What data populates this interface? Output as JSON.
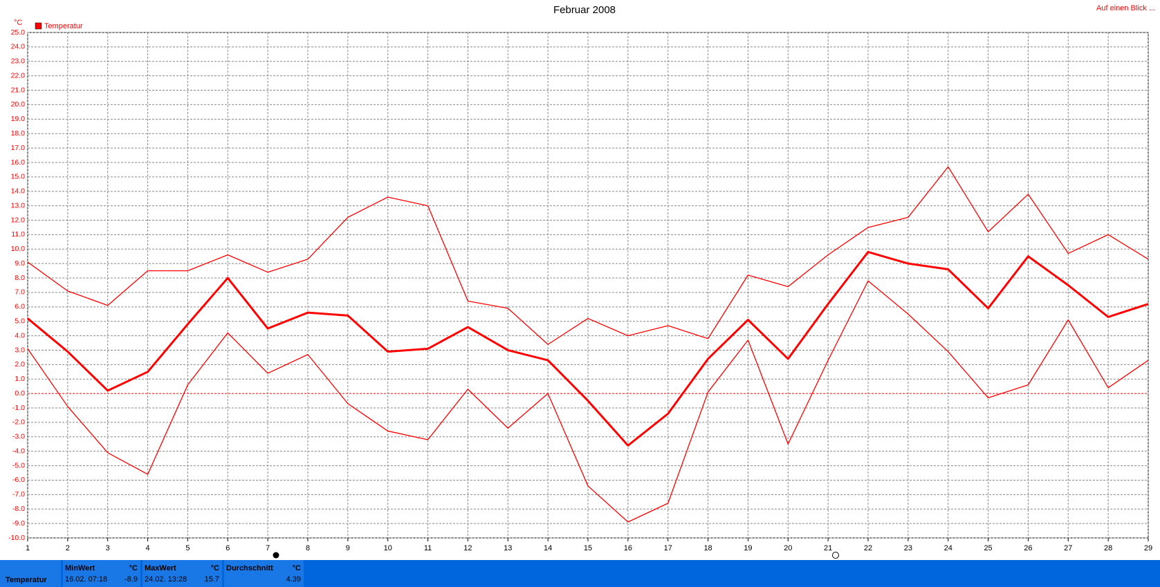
{
  "chart_data": {
    "type": "line",
    "title": "Februar 2008",
    "link": "Auf einen Blick ...",
    "y_unit": "°C",
    "legend": "Temperatur",
    "color": "#ff0000",
    "grid": true,
    "zero_line_color": "#ff0000",
    "x": [
      1,
      2,
      3,
      4,
      5,
      6,
      7,
      8,
      9,
      10,
      11,
      12,
      13,
      14,
      15,
      16,
      17,
      18,
      19,
      20,
      21,
      22,
      23,
      24,
      25,
      26,
      27,
      28,
      29
    ],
    "xlim": [
      1,
      29
    ],
    "xticks": [
      1,
      2,
      3,
      4,
      5,
      6,
      7,
      8,
      9,
      10,
      11,
      12,
      13,
      14,
      15,
      16,
      17,
      18,
      19,
      20,
      21,
      22,
      23,
      24,
      25,
      26,
      27,
      28,
      29
    ],
    "ylim": [
      -10,
      25
    ],
    "yticks": [
      {
        "value": -10,
        "label": "-10.0"
      },
      {
        "value": -9,
        "label": "-9.0"
      },
      {
        "value": -8,
        "label": "-8.0"
      },
      {
        "value": -7,
        "label": "-7.0"
      },
      {
        "value": -6,
        "label": "-6.0"
      },
      {
        "value": -5,
        "label": "-5.0"
      },
      {
        "value": -4,
        "label": "-4.0"
      },
      {
        "value": -3,
        "label": "-3.0"
      },
      {
        "value": -2,
        "label": "-2.0"
      },
      {
        "value": -1,
        "label": "-1.0"
      },
      {
        "value": 0,
        "label": "0.0"
      },
      {
        "value": 1,
        "label": "1.0"
      },
      {
        "value": 2,
        "label": "2.0"
      },
      {
        "value": 3,
        "label": "3.0"
      },
      {
        "value": 4,
        "label": "4.0"
      },
      {
        "value": 5,
        "label": "5.0"
      },
      {
        "value": 6,
        "label": "6.0"
      },
      {
        "value": 7,
        "label": "7.0"
      },
      {
        "value": 8,
        "label": "8.0"
      },
      {
        "value": 9,
        "label": "9.0"
      },
      {
        "value": 10,
        "label": "10.0"
      },
      {
        "value": 11,
        "label": "11.0"
      },
      {
        "value": 12,
        "label": "12.0"
      },
      {
        "value": 13,
        "label": "13.0"
      },
      {
        "value": 14,
        "label": "14.0"
      },
      {
        "value": 15,
        "label": "15.0"
      },
      {
        "value": 16,
        "label": "16.0"
      },
      {
        "value": 17,
        "label": "17.0"
      },
      {
        "value": 18,
        "label": "18.0"
      },
      {
        "value": 19,
        "label": "19.0"
      },
      {
        "value": 20,
        "label": "20.0"
      },
      {
        "value": 21,
        "label": "21.0"
      },
      {
        "value": 22,
        "label": "22.0"
      },
      {
        "value": 23,
        "label": "23.0"
      },
      {
        "value": 24,
        "label": "24.0"
      },
      {
        "value": 25,
        "label": "25.0"
      }
    ],
    "series": [
      {
        "line_width": 1.3,
        "values": [
          9.1,
          7.1,
          6.1,
          8.5,
          8.5,
          9.6,
          8.4,
          9.3,
          12.2,
          13.6,
          13.0,
          6.4,
          5.9,
          3.4,
          5.2,
          4.0,
          4.7,
          3.8,
          8.2,
          7.4,
          9.6,
          11.5,
          12.2,
          15.7,
          11.2,
          13.8,
          9.7,
          11.0,
          9.3
        ]
      },
      {
        "line_width": 3,
        "values": [
          5.2,
          2.9,
          0.2,
          1.5,
          4.8,
          8.0,
          4.5,
          5.6,
          5.4,
          2.9,
          3.1,
          4.6,
          3.0,
          2.3,
          -0.5,
          -3.6,
          -1.4,
          2.4,
          5.1,
          2.4,
          6.2,
          9.8,
          9.0,
          8.6,
          5.9,
          9.5,
          7.5,
          5.3,
          6.2
        ]
      },
      {
        "line_width": 1.3,
        "values": [
          3.1,
          -0.9,
          -4.1,
          -5.6,
          0.6,
          4.2,
          1.4,
          2.7,
          -0.7,
          -2.6,
          -3.2,
          0.3,
          -2.4,
          0.0,
          -6.4,
          -8.9,
          -7.6,
          0.1,
          3.7,
          -3.5,
          2.3,
          7.8,
          5.5,
          2.9,
          -0.3,
          0.6,
          5.1,
          0.4,
          2.3
        ]
      }
    ]
  },
  "summary": {
    "name": "Temperatur",
    "min": {
      "label": "MinWert",
      "unit": "°C",
      "date": "16.02. 07:18",
      "value": "-8.9"
    },
    "max": {
      "label": "MaxWert",
      "unit": "°C",
      "date": "24.02. 13:28",
      "value": "15.7"
    },
    "avg": {
      "label": "Durchschnitt",
      "unit": "°C",
      "value": "4.39"
    }
  }
}
